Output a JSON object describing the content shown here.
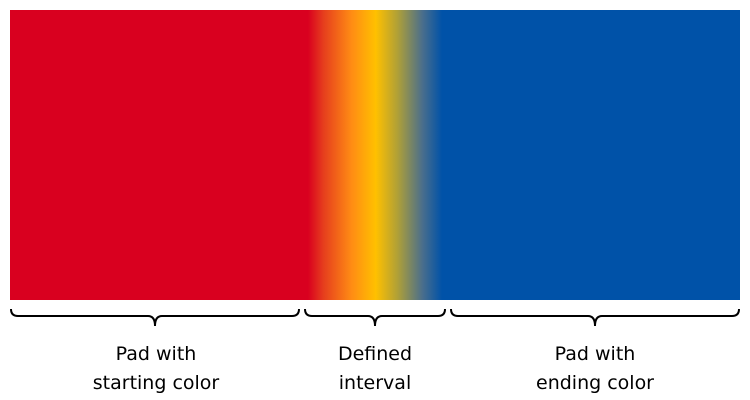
{
  "gradient": {
    "start_color": "#d9001f",
    "ending_color": "#0052a8",
    "stops": [
      {
        "offset": 0.0,
        "color": "#d9001f"
      },
      {
        "offset": 0.408,
        "color": "#d9001f"
      },
      {
        "offset": 0.43,
        "color": "#e63f1d"
      },
      {
        "offset": 0.468,
        "color": "#ff8c14"
      },
      {
        "offset": 0.501,
        "color": "#ffc000"
      },
      {
        "offset": 0.53,
        "color": "#b2a135"
      },
      {
        "offset": 0.565,
        "color": "#4a6e8c"
      },
      {
        "offset": 0.592,
        "color": "#0052a8"
      },
      {
        "offset": 1.0,
        "color": "#0052a8"
      }
    ]
  },
  "labels": {
    "start": {
      "line1": "Pad with",
      "line2": "starting color"
    },
    "interval": {
      "line1": "Defined",
      "line2": "interval"
    },
    "end": {
      "line1": "Pad with",
      "line2": "ending color"
    }
  }
}
